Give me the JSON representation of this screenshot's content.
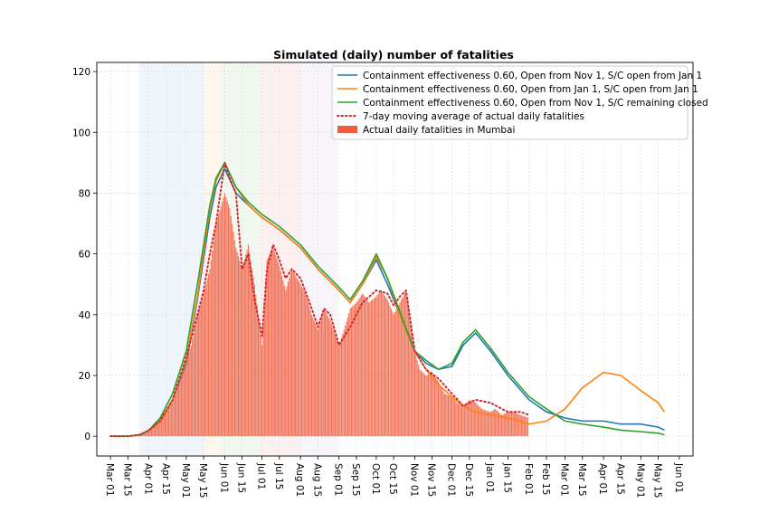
{
  "chart_data": {
    "type": "line",
    "title": "Simulated (daily) number of fatalities",
    "xlabel": "",
    "ylabel": "",
    "x_ticks": [
      "Mar 01",
      "Mar 15",
      "Apr 01",
      "Apr 15",
      "May 01",
      "May 15",
      "Jun 01",
      "Jun 15",
      "Jul 01",
      "Jul 15",
      "Aug 01",
      "Aug 15",
      "Sep 01",
      "Sep 15",
      "Oct 01",
      "Oct 15",
      "Nov 01",
      "Nov 15",
      "Dec 01",
      "Dec 15",
      "Jan 01",
      "Jan 15",
      "Feb 01",
      "Feb 15",
      "Mar 01",
      "Mar 15",
      "Apr 01",
      "Apr 15",
      "May 01",
      "May 15",
      "Jun 01"
    ],
    "y_ticks": [
      0,
      20,
      40,
      60,
      80,
      100,
      120
    ],
    "ylim": [
      -6.5,
      123
    ],
    "grid": true,
    "legend_position": "top-right",
    "shaded_periods": [
      {
        "start": "Mar 24",
        "end": "May 15",
        "color": "#1f77b4"
      },
      {
        "start": "May 15",
        "end": "May 29",
        "color": "#ff7f0e"
      },
      {
        "start": "May 29",
        "end": "Jun 29",
        "color": "#2ca02c"
      },
      {
        "start": "Jun 29",
        "end": "Jul 31",
        "color": "#d62728"
      },
      {
        "start": "Jul 31",
        "end": "Aug 31",
        "color": "#9467bd"
      }
    ],
    "series": [
      {
        "name": "Containment effectiveness 0.60, Open from Nov 1, S/C open from Jan 1",
        "style": "line",
        "color": "#1f77b4",
        "x": [
          "Mar 01",
          "Mar 15",
          "Mar 25",
          "Apr 01",
          "Apr 10",
          "Apr 20",
          "May 01",
          "May 10",
          "May 20",
          "May 25",
          "Jun 01",
          "Jun 10",
          "Jun 20",
          "Jul 01",
          "Jul 15",
          "Aug 01",
          "Aug 15",
          "Sep 01",
          "Sep 10",
          "Sep 20",
          "Oct 01",
          "Oct 10",
          "Oct 20",
          "Nov 01",
          "Nov 10",
          "Nov 20",
          "Dec 01",
          "Dec 10",
          "Dec 20",
          "Jan 01",
          "Jan 15",
          "Feb 01",
          "Feb 15",
          "Mar 01",
          "Mar 15",
          "Apr 01",
          "Apr 15",
          "May 01",
          "May 15",
          "May 20"
        ],
        "values": [
          0,
          0,
          0.5,
          2,
          5,
          12,
          24,
          45,
          72,
          82,
          88,
          80,
          76,
          72,
          68,
          62,
          55,
          48,
          44,
          50,
          58,
          50,
          40,
          28,
          24,
          22,
          23,
          30,
          34,
          28,
          20,
          12,
          8,
          6,
          5,
          5,
          4,
          4,
          3,
          2
        ]
      },
      {
        "name": "Containment effectiveness 0.60, Open from Jan 1, S/C open from Jan 1",
        "style": "line",
        "color": "#ff7f0e",
        "x": [
          "Mar 01",
          "Mar 15",
          "Mar 25",
          "Apr 01",
          "Apr 10",
          "Apr 20",
          "May 01",
          "May 10",
          "May 20",
          "May 25",
          "Jun 01",
          "Jun 10",
          "Jun 20",
          "Jul 01",
          "Jul 15",
          "Aug 01",
          "Aug 15",
          "Sep 01",
          "Sep 10",
          "Sep 20",
          "Oct 01",
          "Oct 10",
          "Oct 20",
          "Nov 01",
          "Nov 10",
          "Nov 20",
          "Dec 01",
          "Dec 10",
          "Dec 20",
          "Jan 01",
          "Jan 15",
          "Feb 01",
          "Feb 15",
          "Mar 01",
          "Mar 15",
          "Apr 01",
          "Apr 15",
          "May 01",
          "May 15",
          "May 20"
        ],
        "values": [
          0,
          0,
          0.5,
          2,
          5,
          12,
          25,
          46,
          75,
          84,
          90,
          82,
          76,
          72,
          68,
          62,
          55,
          48,
          44,
          50,
          59,
          52,
          40,
          28,
          22,
          17,
          13,
          10,
          8,
          7,
          6,
          4,
          5,
          9,
          16,
          21,
          20,
          15,
          11,
          8
        ]
      },
      {
        "name": "Containment effectiveness 0.60, Open from Nov 1, S/C remaining closed",
        "style": "line",
        "color": "#2ca02c",
        "x": [
          "Mar 01",
          "Mar 15",
          "Mar 25",
          "Apr 01",
          "Apr 10",
          "Apr 20",
          "May 01",
          "May 10",
          "May 20",
          "May 25",
          "Jun 01",
          "Jun 10",
          "Jun 20",
          "Jul 01",
          "Jul 15",
          "Aug 01",
          "Aug 15",
          "Sep 01",
          "Sep 10",
          "Sep 20",
          "Oct 01",
          "Oct 10",
          "Oct 20",
          "Nov 01",
          "Nov 10",
          "Nov 20",
          "Dec 01",
          "Dec 10",
          "Dec 20",
          "Jan 01",
          "Jan 15",
          "Feb 01",
          "Feb 15",
          "Mar 01",
          "Mar 15",
          "Apr 01",
          "Apr 15",
          "May 01",
          "May 15",
          "May 20"
        ],
        "values": [
          0,
          0,
          0.5,
          2,
          6,
          14,
          28,
          50,
          76,
          85,
          90,
          82,
          77,
          73,
          69,
          63,
          56,
          49,
          45,
          51,
          60,
          52,
          41,
          28,
          25,
          22,
          24,
          31,
          35,
          29,
          21,
          13,
          9,
          5,
          4,
          3,
          2,
          1.5,
          1,
          0.5
        ]
      },
      {
        "name": "7-day moving average of actual daily fatalities",
        "style": "dotted",
        "color": "#d62728",
        "x": [
          "Mar 01",
          "Mar 15",
          "Mar 25",
          "Apr 01",
          "Apr 10",
          "Apr 20",
          "May 01",
          "May 10",
          "May 15",
          "May 20",
          "May 25",
          "Jun 01",
          "Jun 05",
          "Jun 10",
          "Jun 15",
          "Jun 20",
          "Jun 25",
          "Jul 01",
          "Jul 05",
          "Jul 10",
          "Jul 15",
          "Jul 20",
          "Jul 25",
          "Aug 01",
          "Aug 10",
          "Aug 15",
          "Aug 20",
          "Aug 25",
          "Sep 01",
          "Sep 10",
          "Sep 20",
          "Oct 01",
          "Oct 10",
          "Oct 15",
          "Oct 20",
          "Oct 25",
          "Nov 01",
          "Nov 10",
          "Nov 20",
          "Dec 01",
          "Dec 10",
          "Dec 15",
          "Dec 20",
          "Jan 01",
          "Jan 10",
          "Jan 15",
          "Jan 20",
          "Jan 25",
          "Feb 01"
        ],
        "values": [
          0,
          0,
          0.5,
          2,
          5,
          12,
          26,
          40,
          48,
          60,
          70,
          90,
          85,
          80,
          55,
          60,
          45,
          33,
          55,
          63,
          58,
          52,
          55,
          52,
          42,
          36,
          42,
          40,
          30,
          36,
          44,
          48,
          47,
          43,
          46,
          48,
          28,
          22,
          19,
          14,
          10,
          11,
          12,
          11,
          9,
          8,
          8,
          8,
          7
        ]
      },
      {
        "name": "Actual daily fatalities in Mumbai",
        "style": "bar",
        "color": "#ef5b3c",
        "x": [
          "Mar 15",
          "Mar 20",
          "Mar 25",
          "Apr 01",
          "Apr 05",
          "Apr 10",
          "Apr 15",
          "Apr 20",
          "Apr 25",
          "May 01",
          "May 05",
          "May 10",
          "May 15",
          "May 20",
          "May 25",
          "Jun 01",
          "Jun 05",
          "Jun 10",
          "Jun 15",
          "Jun 20",
          "Jun 25",
          "Jul 01",
          "Jul 05",
          "Jul 10",
          "Jul 15",
          "Jul 20",
          "Jul 25",
          "Aug 01",
          "Aug 05",
          "Aug 10",
          "Aug 15",
          "Aug 20",
          "Aug 25",
          "Sep 01",
          "Sep 05",
          "Sep 10",
          "Sep 15",
          "Sep 20",
          "Sep 25",
          "Oct 01",
          "Oct 05",
          "Oct 10",
          "Oct 15",
          "Oct 20",
          "Oct 25",
          "Nov 01",
          "Nov 05",
          "Nov 10",
          "Nov 15",
          "Nov 20",
          "Nov 25",
          "Dec 01",
          "Dec 05",
          "Dec 10",
          "Dec 15",
          "Dec 20",
          "Dec 25",
          "Jan 01",
          "Jan 05",
          "Jan 10",
          "Jan 15",
          "Jan 20",
          "Jan 25",
          "Feb 01"
        ],
        "values": [
          0,
          0,
          1,
          2,
          4,
          6,
          9,
          12,
          18,
          25,
          30,
          40,
          47,
          55,
          70,
          80,
          75,
          62,
          55,
          63,
          50,
          30,
          58,
          62,
          56,
          48,
          55,
          50,
          47,
          40,
          35,
          42,
          38,
          30,
          35,
          42,
          44,
          47,
          44,
          46,
          48,
          45,
          40,
          44,
          48,
          28,
          22,
          20,
          21,
          18,
          14,
          13,
          11,
          10,
          12,
          11,
          9,
          8,
          9,
          7,
          8,
          8,
          7,
          6
        ]
      }
    ]
  }
}
